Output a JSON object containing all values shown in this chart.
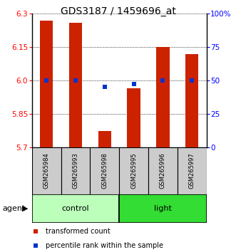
{
  "title": "GDS3187 / 1459696_at",
  "samples": [
    "GSM265984",
    "GSM265993",
    "GSM265998",
    "GSM265995",
    "GSM265996",
    "GSM265997"
  ],
  "bar_tops": [
    6.27,
    6.26,
    5.775,
    5.965,
    6.15,
    6.12
  ],
  "bar_bottom": 5.7,
  "blue_y": [
    6.0,
    6.0,
    5.972,
    5.984,
    6.0,
    6.0
  ],
  "ylim": [
    5.7,
    6.3
  ],
  "yticks_left": [
    5.7,
    5.85,
    6.0,
    6.15,
    6.3
  ],
  "yticks_right_labels": [
    "0",
    "25",
    "50",
    "75",
    "100%"
  ],
  "bar_color": "#cc2200",
  "blue_color": "#0033cc",
  "groups": [
    {
      "label": "control",
      "indices": [
        0,
        1,
        2
      ],
      "color": "#bbffbb"
    },
    {
      "label": "light",
      "indices": [
        3,
        4,
        5
      ],
      "color": "#33dd33"
    }
  ],
  "sample_box_color": "#cccccc",
  "title_fontsize": 10,
  "tick_fontsize": 7.5,
  "bar_width": 0.45,
  "legend_fontsize": 7,
  "agent_fontsize": 8,
  "group_fontsize": 8,
  "sample_fontsize": 6
}
